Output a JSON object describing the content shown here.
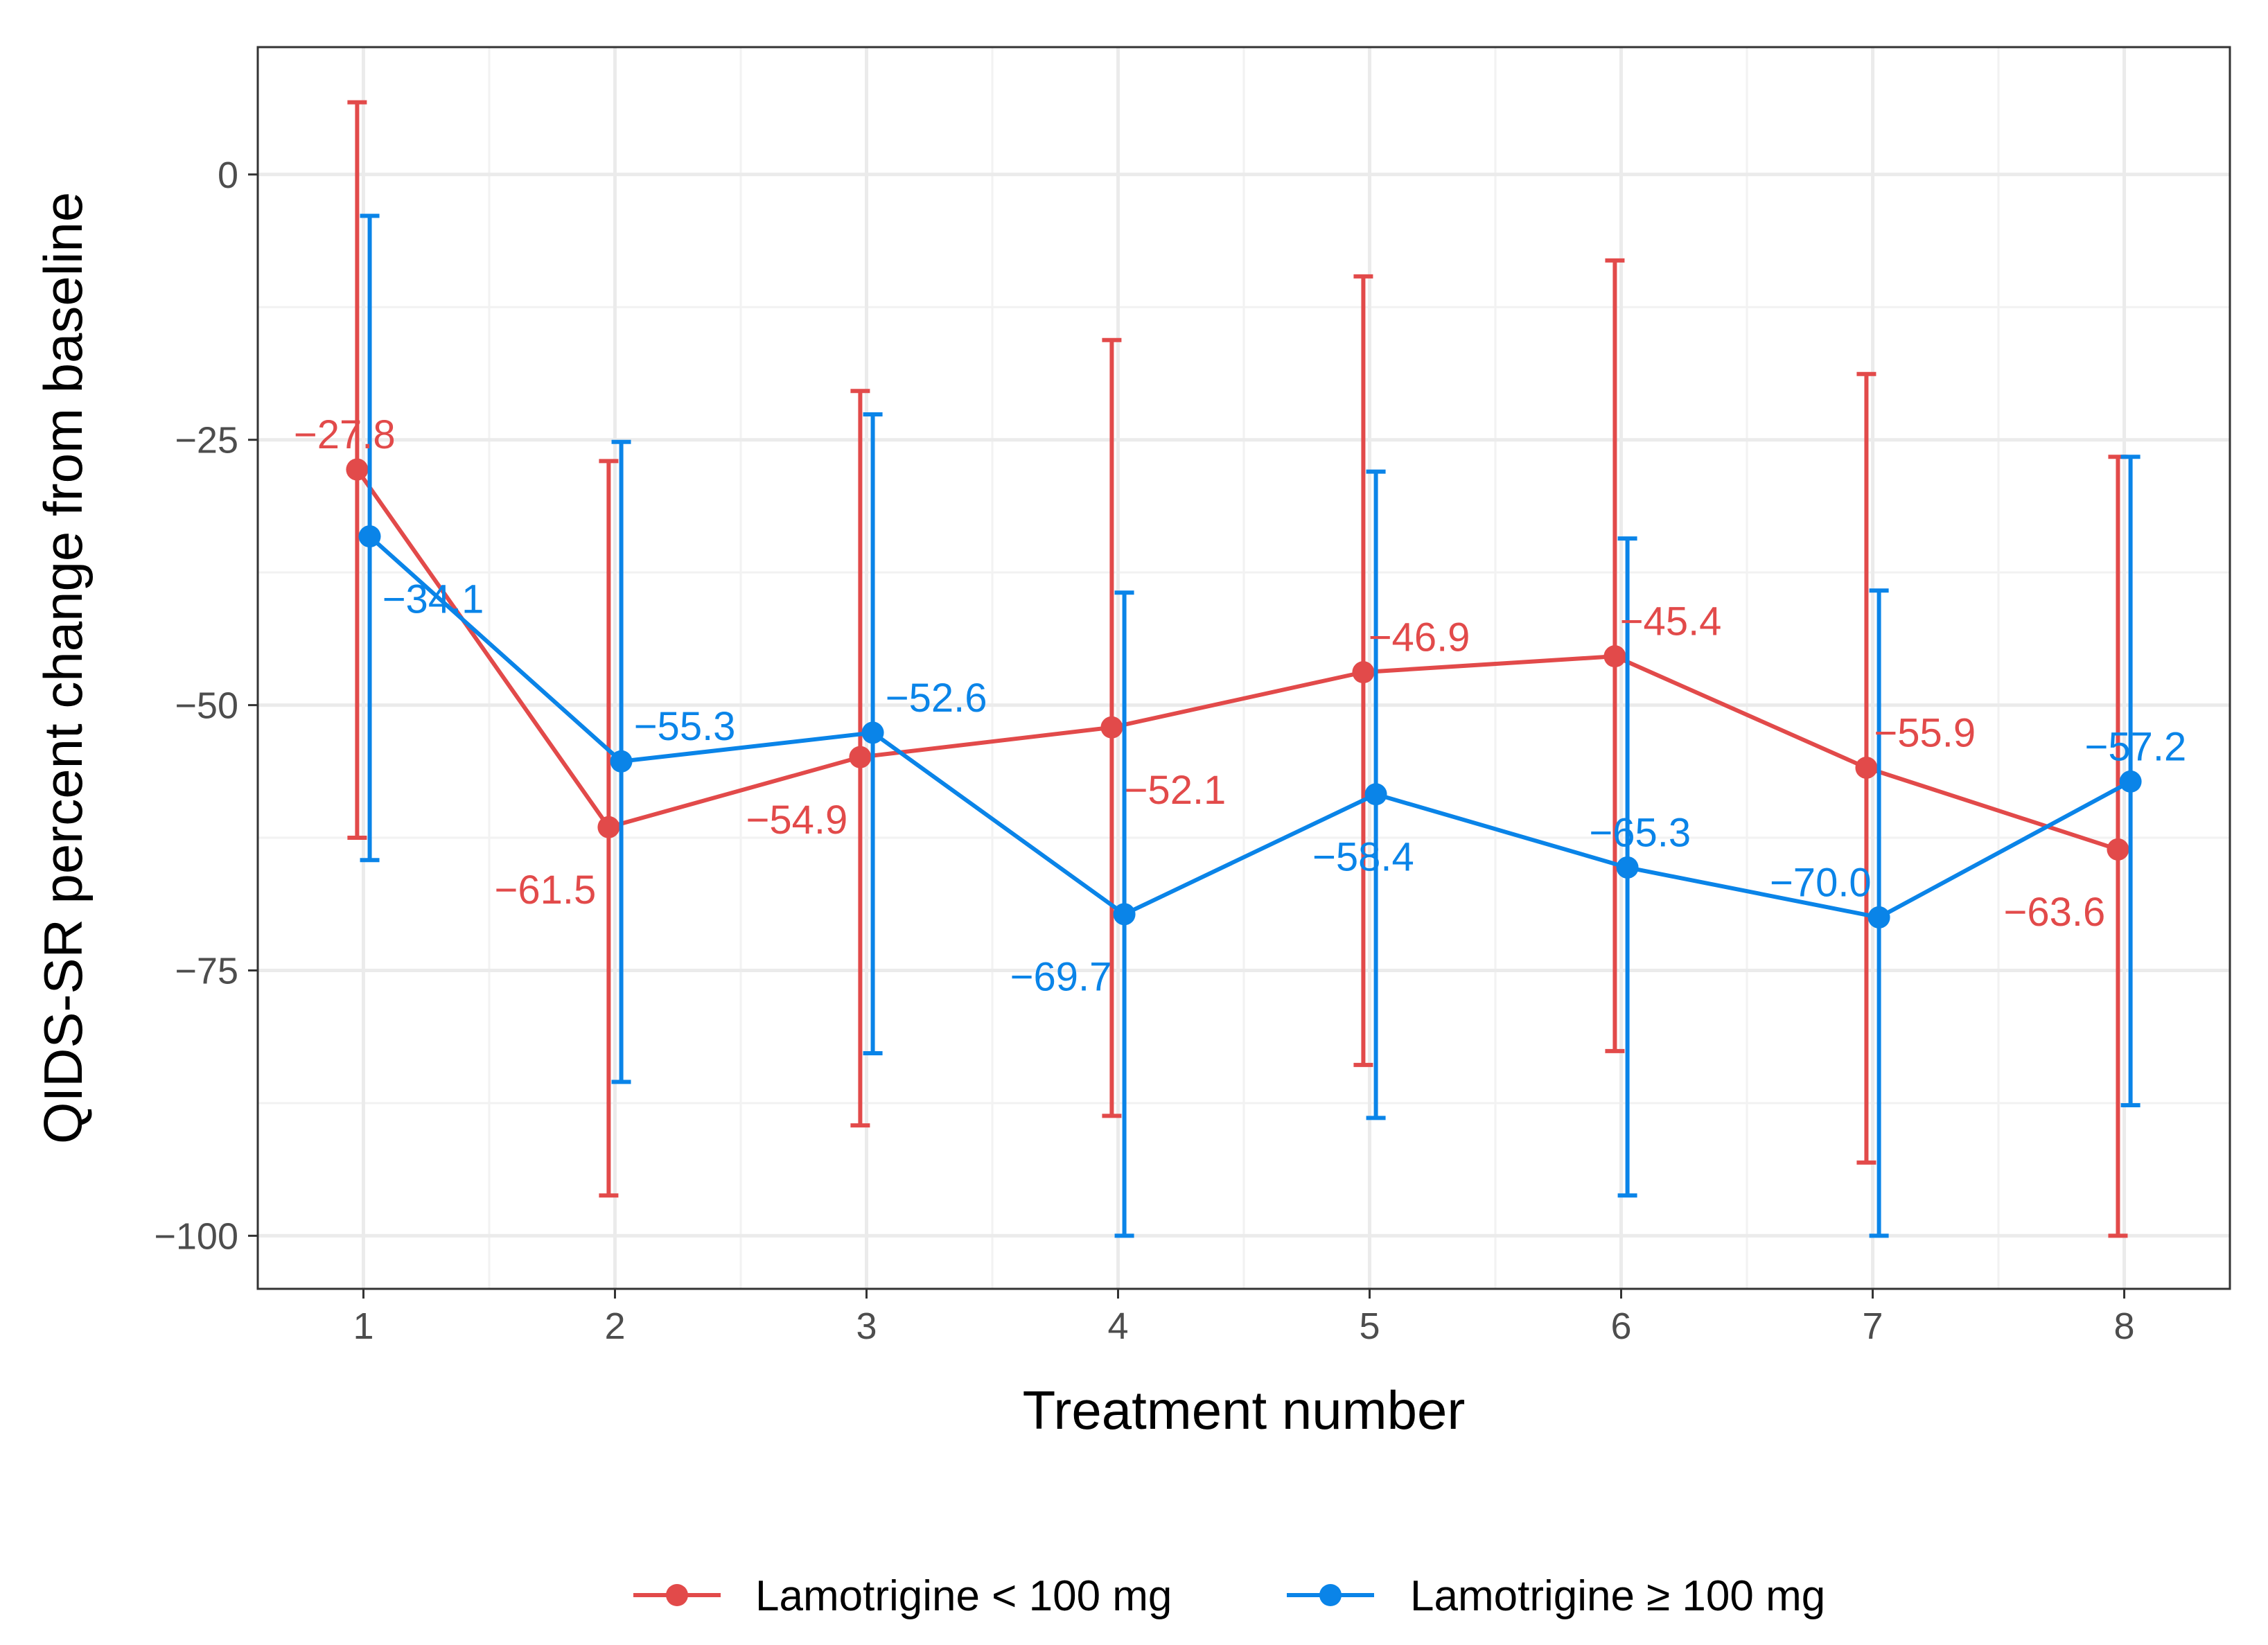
{
  "chart_data": {
    "type": "line",
    "title": "",
    "xlabel": "Treatment number",
    "ylabel": "QIDS-SR percent change from baseline",
    "x": [
      1,
      2,
      3,
      4,
      5,
      6,
      7,
      8
    ],
    "xlim": [
      0.58,
      8.42
    ],
    "ylim": [
      -105,
      12
    ],
    "x_ticks": [
      1,
      2,
      3,
      4,
      5,
      6,
      7,
      8
    ],
    "x_tick_labels": [
      "1",
      "2",
      "3",
      "4",
      "5",
      "6",
      "7",
      "8"
    ],
    "y_ticks": [
      0,
      -25,
      -50,
      -75,
      -100
    ],
    "y_tick_labels": [
      "0",
      "−25",
      "−50",
      "−75",
      "−100"
    ],
    "grid": true,
    "legend_position": "bottom",
    "series": [
      {
        "name": "Lamotrigine < 100 mg",
        "color": "#E24A4A",
        "values": [
          -27.8,
          -61.5,
          -54.9,
          -52.1,
          -46.9,
          -45.4,
          -55.9,
          -63.6
        ],
        "labels": [
          "−27.8",
          "−61.5",
          "−54.9",
          "−52.1",
          "−46.9",
          "−45.4",
          "−55.9",
          "−63.6"
        ],
        "error_lower": [
          -62.5,
          -96.2,
          -89.6,
          -88.7,
          -83.9,
          -82.6,
          -93.1,
          -100
        ],
        "error_upper": [
          6.8,
          -27.0,
          -20.4,
          -15.6,
          -9.6,
          -8.1,
          -18.8,
          -26.6
        ]
      },
      {
        "name": "Lamotrigine ≥ 100 mg",
        "color": "#0A84E8",
        "values": [
          -34.1,
          -55.3,
          -52.6,
          -69.7,
          -58.4,
          -65.3,
          -70.0,
          -57.2
        ],
        "labels": [
          "−34.1",
          "−55.3",
          "−52.6",
          "−69.7",
          "−58.4",
          "−65.3",
          "−70.0",
          "−57.2"
        ],
        "error_lower": [
          -64.6,
          -85.5,
          -82.8,
          -100,
          -88.9,
          -96.2,
          -100,
          -87.7
        ],
        "error_upper": [
          -3.9,
          -25.2,
          -22.6,
          -39.4,
          -28.0,
          -34.3,
          -39.2,
          -26.6
        ]
      }
    ]
  }
}
